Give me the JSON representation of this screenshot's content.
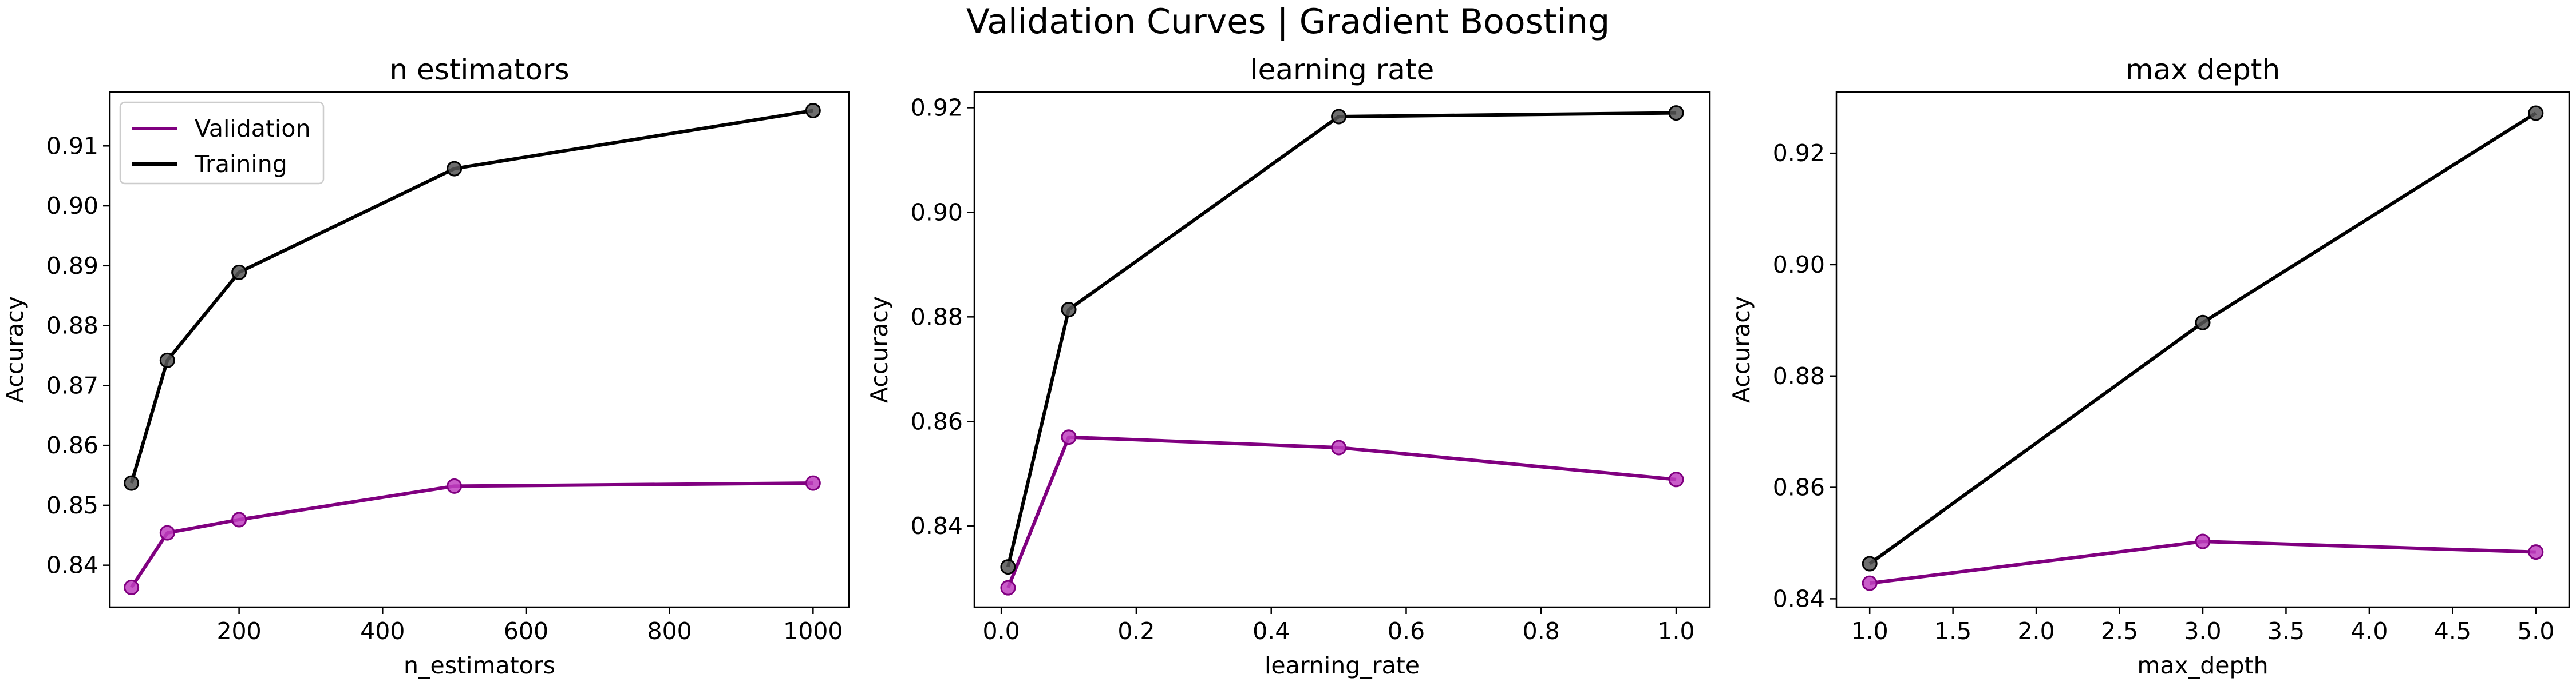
{
  "figure": {
    "title": "Validation Curves | Gradient Boosting"
  },
  "colors": {
    "validation": "#800080",
    "validation_marker": "#bf40bf",
    "training": "#000000",
    "training_marker": "#555555"
  },
  "legend": {
    "placement": "upper-left",
    "items": [
      "Validation",
      "Training"
    ]
  },
  "chart_data": [
    {
      "type": "line",
      "title": "n estimators",
      "xlabel": "n_estimators",
      "ylabel": "Accuracy",
      "xlim": [
        20,
        1050
      ],
      "ylim": [
        0.833,
        0.919
      ],
      "xticks": [
        200,
        400,
        600,
        800,
        1000
      ],
      "xtick_labels": [
        "200",
        "400",
        "600",
        "800",
        "1000"
      ],
      "yticks": [
        0.84,
        0.85,
        0.86,
        0.87,
        0.88,
        0.89,
        0.9,
        0.91
      ],
      "ytick_labels": [
        "0.84",
        "0.85",
        "0.86",
        "0.87",
        "0.88",
        "0.89",
        "0.90",
        "0.91"
      ],
      "x": [
        50,
        100,
        200,
        500,
        1000
      ],
      "series": [
        {
          "name": "Validation",
          "values": [
            0.8363,
            0.8454,
            0.8476,
            0.8532,
            0.8537
          ]
        },
        {
          "name": "Training",
          "values": [
            0.8537,
            0.8742,
            0.8889,
            0.9062,
            0.9159
          ]
        }
      ],
      "grid": false,
      "legend": true
    },
    {
      "type": "line",
      "title": "learning rate",
      "xlabel": "learning_rate",
      "ylabel": "Accuracy",
      "xlim": [
        -0.04,
        1.05
      ],
      "ylim": [
        0.8245,
        0.923
      ],
      "xticks": [
        0.0,
        0.2,
        0.4,
        0.6,
        0.8,
        1.0
      ],
      "xtick_labels": [
        "0.0",
        "0.2",
        "0.4",
        "0.6",
        "0.8",
        "1.0"
      ],
      "yticks": [
        0.84,
        0.86,
        0.88,
        0.9,
        0.92
      ],
      "ytick_labels": [
        "0.84",
        "0.86",
        "0.88",
        "0.90",
        "0.92"
      ],
      "x": [
        0.01,
        0.1,
        0.5,
        1.0
      ],
      "series": [
        {
          "name": "Validation",
          "values": [
            0.8282,
            0.857,
            0.855,
            0.8489
          ]
        },
        {
          "name": "Training",
          "values": [
            0.8322,
            0.8814,
            0.9183,
            0.919
          ]
        }
      ],
      "grid": false,
      "legend": false
    },
    {
      "type": "line",
      "title": "max depth",
      "xlabel": "max_depth",
      "ylabel": "Accuracy",
      "xlim": [
        0.8,
        5.2
      ],
      "ylim": [
        0.8385,
        0.931
      ],
      "xticks": [
        1.0,
        1.5,
        2.0,
        2.5,
        3.0,
        3.5,
        4.0,
        4.5,
        5.0
      ],
      "xtick_labels": [
        "1.0",
        "1.5",
        "2.0",
        "2.5",
        "3.0",
        "3.5",
        "4.0",
        "4.5",
        "5.0"
      ],
      "yticks": [
        0.84,
        0.86,
        0.88,
        0.9,
        0.92
      ],
      "ytick_labels": [
        "0.84",
        "0.86",
        "0.88",
        "0.90",
        "0.92"
      ],
      "x": [
        1,
        3,
        5
      ],
      "series": [
        {
          "name": "Validation",
          "values": [
            0.8428,
            0.8503,
            0.8484
          ]
        },
        {
          "name": "Training",
          "values": [
            0.8463,
            0.8896,
            0.9272
          ]
        }
      ],
      "grid": false,
      "legend": false
    }
  ]
}
